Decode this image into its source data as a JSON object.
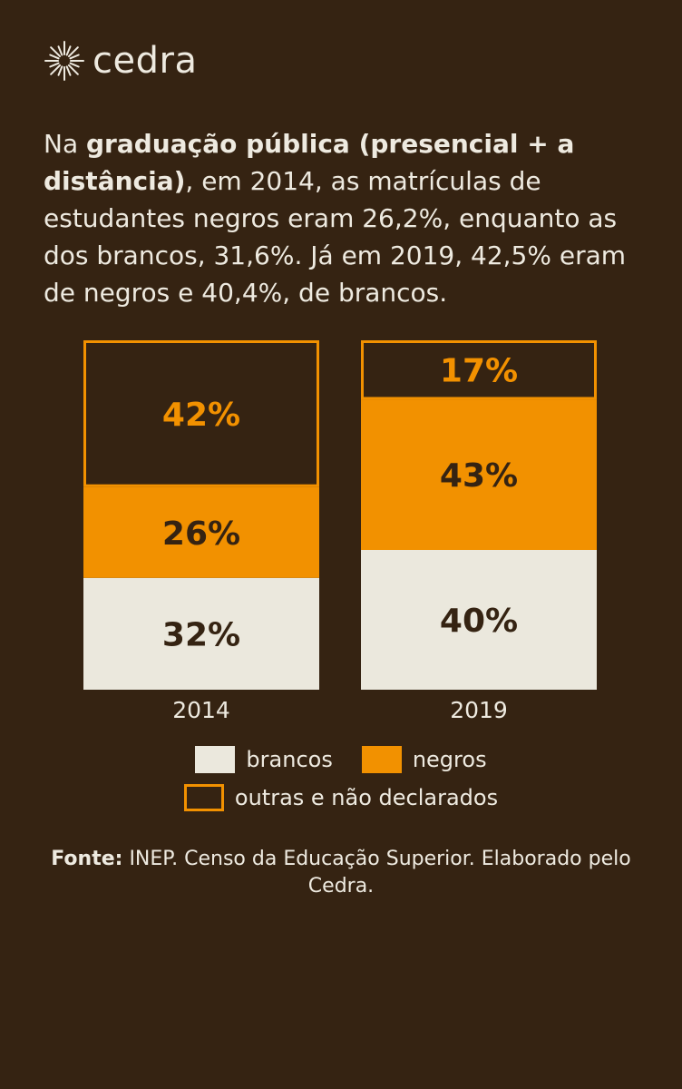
{
  "brand": {
    "logo_icon": "sun-icon",
    "name": "cedra"
  },
  "intro": {
    "before": "Na ",
    "bold": "graduação pública (presencial + a distância)",
    "after": ", em 2014, as matrículas de estudantes negros eram 26,2%, enquanto as dos brancos, 31,6%. Já em 2019, 42,5% eram de negros e 40,4%, de brancos."
  },
  "colors": {
    "background": "#352312",
    "brancos": "#ebe8dd",
    "negros": "#f29100",
    "text_dark": "#352312",
    "text_light": "#eeeae0"
  },
  "chart_data": {
    "type": "bar",
    "stacked": true,
    "categories": [
      "2014",
      "2019"
    ],
    "series": [
      {
        "name": "brancos",
        "values": [
          32,
          40
        ],
        "labels": [
          "32%",
          "40%"
        ]
      },
      {
        "name": "negros",
        "values": [
          26,
          43
        ],
        "labels": [
          "26%",
          "43%"
        ]
      },
      {
        "name": "outras e não declarados",
        "values": [
          42,
          17
        ],
        "labels": [
          "42%",
          "17%"
        ]
      }
    ],
    "ylim": [
      0,
      100
    ],
    "grid": false,
    "legend_position": "bottom"
  },
  "legend": {
    "brancos": "brancos",
    "negros": "negros",
    "outras": "outras e não declarados"
  },
  "source": {
    "label": "Fonte:",
    "text": " INEP. Censo da Educação Superior. Elaborado pelo Cedra."
  }
}
